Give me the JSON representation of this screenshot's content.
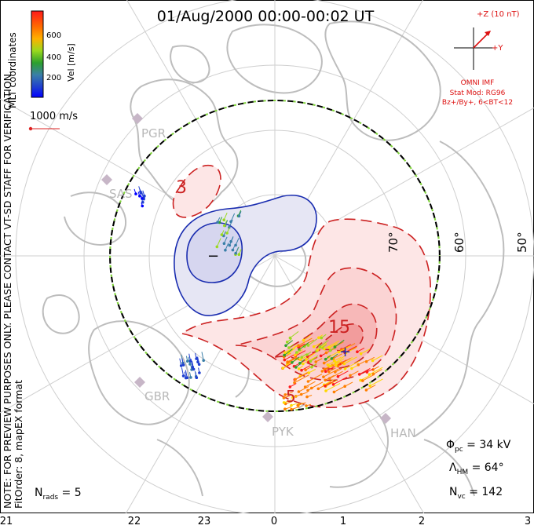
{
  "title": "01/Aug/2000 00:00-00:02 UT",
  "coordinates_label": "MLT coordinates",
  "colorbar": {
    "label": "Vel [m/s]",
    "ticks": [
      "600",
      "400",
      "200"
    ],
    "colors": [
      "#ff1a1a",
      "#ff7f00",
      "#ffd700",
      "#9ad91e",
      "#2ca02c",
      "#3a7fa8",
      "#1f3fd0",
      "#0000ff"
    ]
  },
  "speed_reference": "1000 m/s",
  "imf_panel": {
    "z_label": "+Z (10 nT)",
    "y_label": "+Y",
    "source": "OMNI IMF",
    "stat_mod": "Stat Mod: RG96",
    "condition": "Bz+/By+, 6<BT<12"
  },
  "watermark": "NOTE: FOR PREVIEW PURPOSES ONLY. PLEASE CONTACT VT-SD STAFF FOR VERIFICATION.",
  "fit_order": "FitOrder: 8, mapEX format",
  "stations": [
    "PGR",
    "SAS",
    "GBR",
    "PYK",
    "HAN"
  ],
  "latitude_labels": [
    "70°",
    "60°",
    "50°"
  ],
  "contour_labels": [
    "3",
    "15",
    "5"
  ],
  "stats": {
    "phi_symbol": "Φ",
    "phi_sub": "pc",
    "phi_value": " = 34 kV",
    "lambda_symbol": "Λ",
    "lambda_sub": "HM",
    "lambda_value": " = 64°",
    "nvc_symbol": "N",
    "nvc_sub": "vc",
    "nvc_value": " = 142",
    "nrads_symbol": "N",
    "nrads_sub": "rads",
    "nrads_value": " = 5"
  },
  "mlt_axis": [
    "21",
    "22",
    "23",
    "0",
    "1",
    "2",
    "3"
  ]
}
